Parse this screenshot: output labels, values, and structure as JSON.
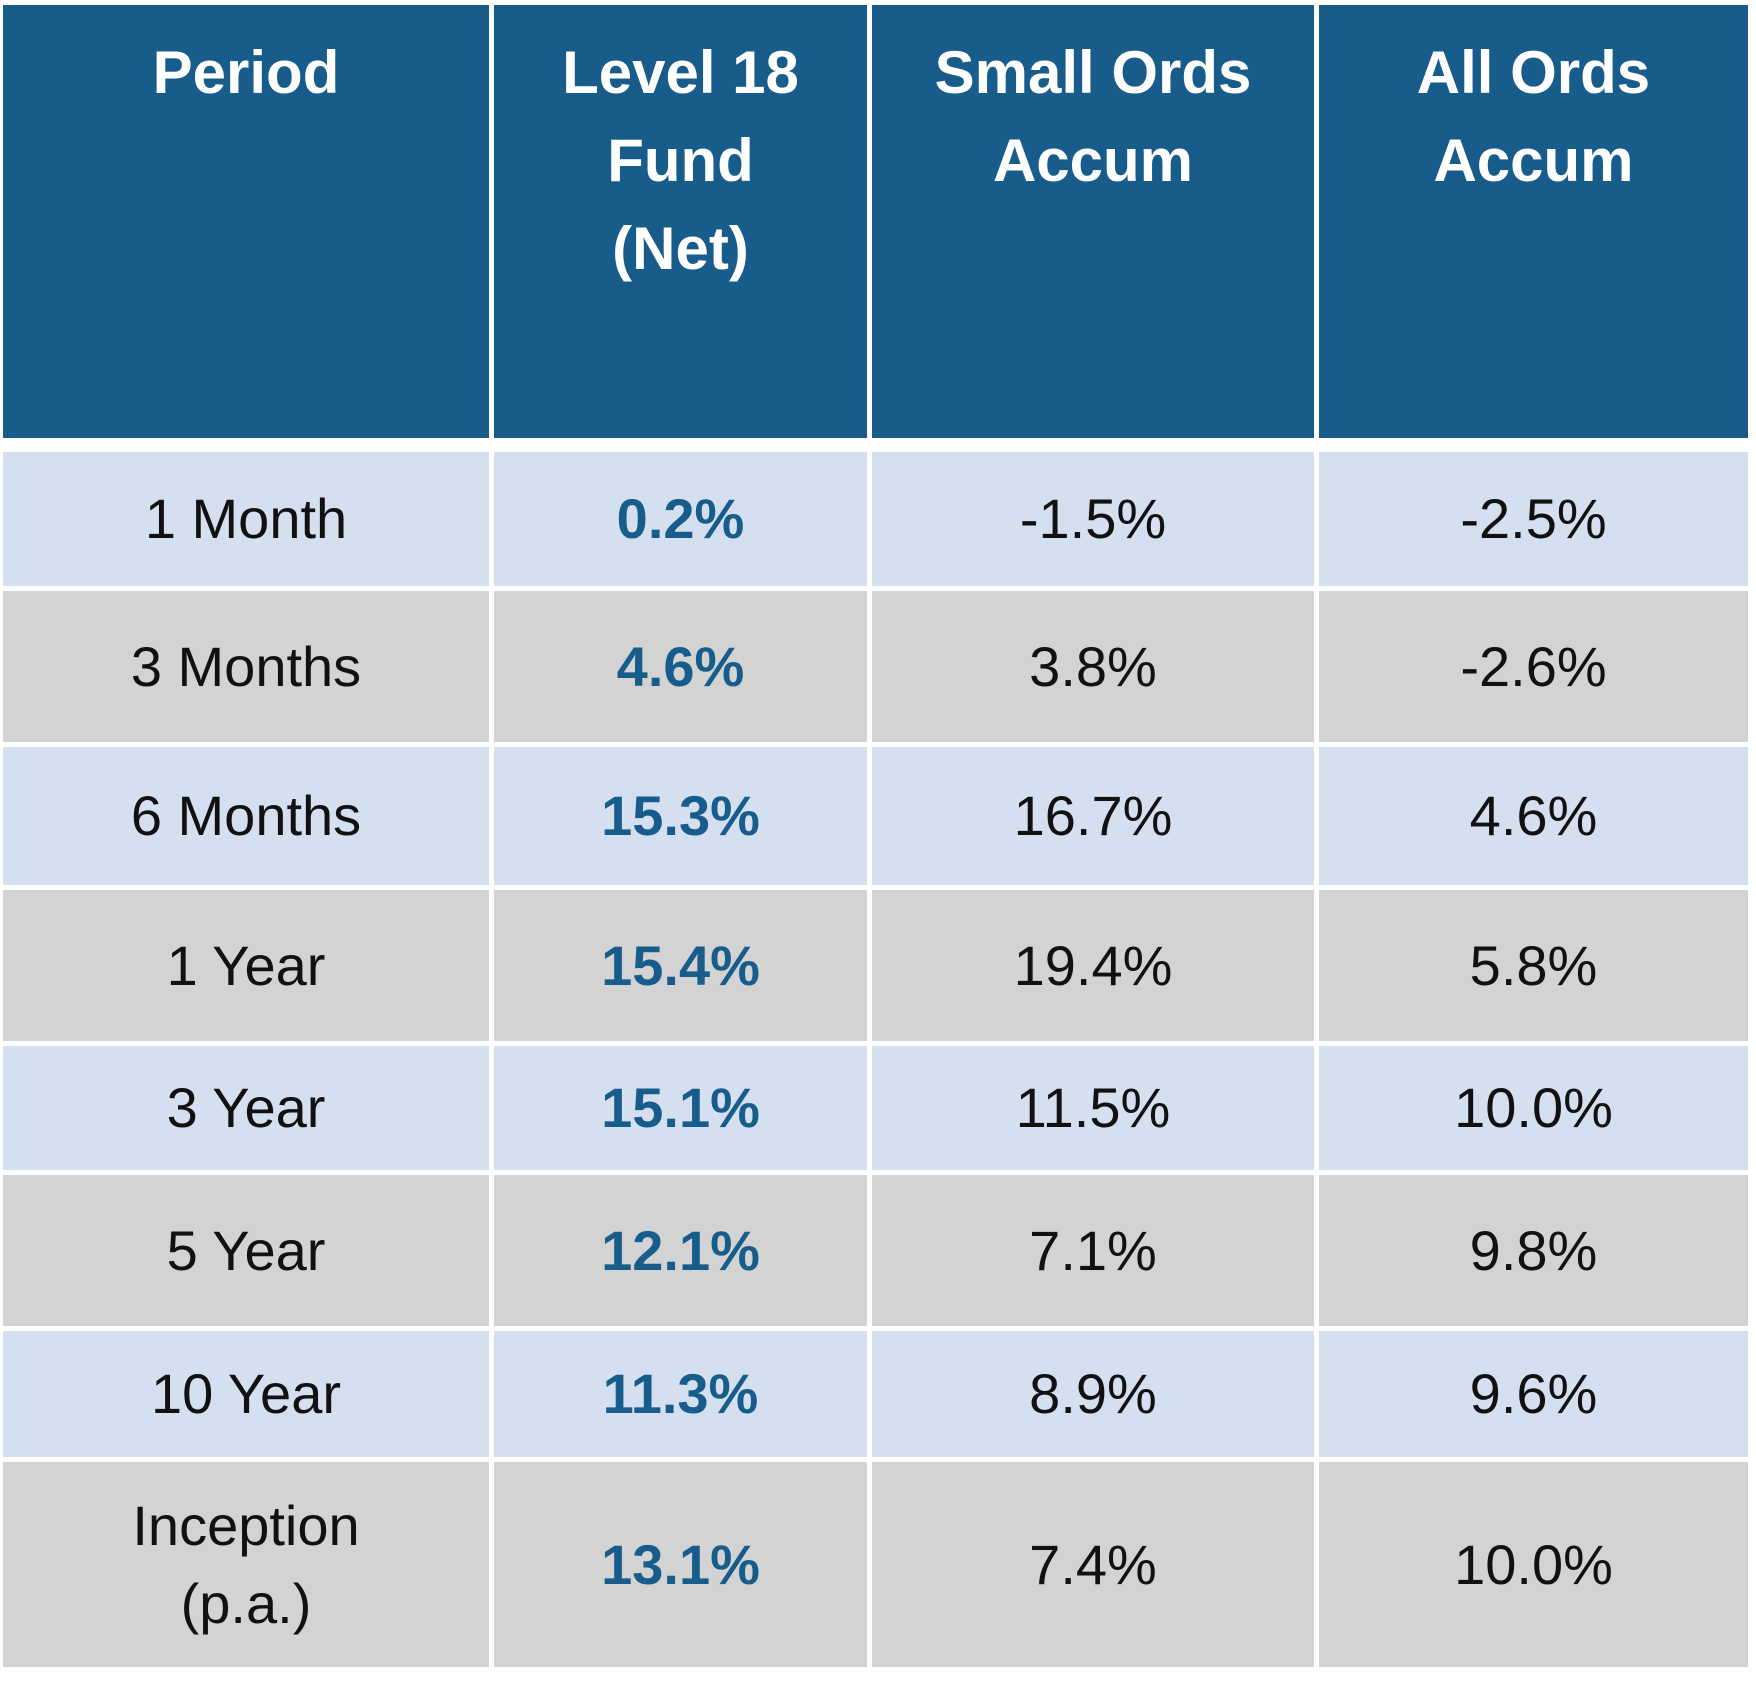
{
  "table": {
    "header": [
      [
        "Period"
      ],
      [
        "Level 18",
        "Fund",
        "(Net)"
      ],
      [
        "Small Ords",
        "Accum"
      ],
      [
        "All Ords",
        "Accum"
      ]
    ],
    "rows": [
      [
        [
          "1 Month"
        ],
        "0.2%",
        "-1.5%",
        "-2.5%"
      ],
      [
        [
          "3 Months"
        ],
        "4.6%",
        "3.8%",
        "-2.6%"
      ],
      [
        [
          "6 Months"
        ],
        "15.3%",
        "16.7%",
        "4.6%"
      ],
      [
        [
          "1 Year"
        ],
        "15.4%",
        "19.4%",
        "5.8%"
      ],
      [
        [
          "3 Year"
        ],
        "15.1%",
        "11.5%",
        "10.0%"
      ],
      [
        [
          "5 Year"
        ],
        "12.1%",
        "7.1%",
        "9.8%"
      ],
      [
        [
          "10 Year"
        ],
        "11.3%",
        "8.9%",
        "9.6%"
      ],
      [
        [
          "Inception",
          "(p.a.)"
        ],
        "13.1%",
        "7.4%",
        "10.0%"
      ]
    ]
  }
}
